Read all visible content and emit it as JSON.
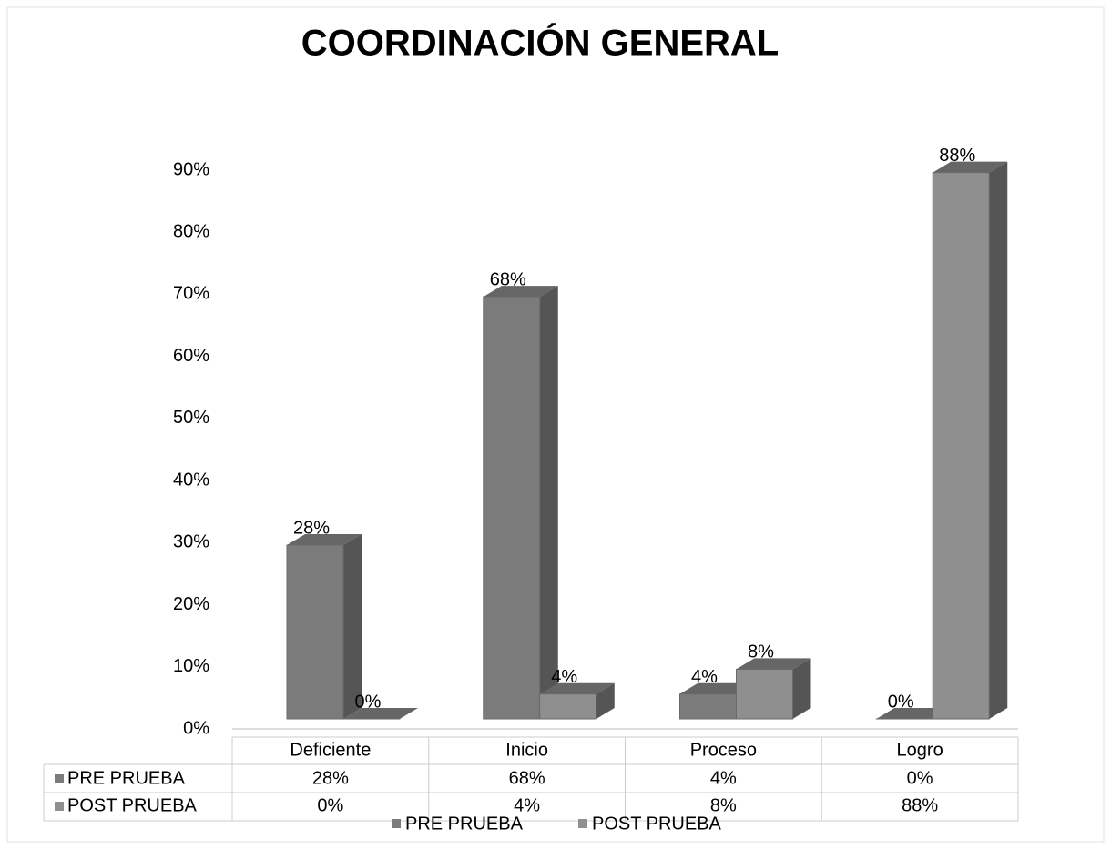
{
  "chart_data": {
    "type": "bar3d",
    "title": "COORDINACIÓN GENERAL",
    "categories": [
      "Deficiente",
      "Inicio",
      "Proceso",
      "Logro"
    ],
    "series": [
      {
        "name": "PRE PRUEBA",
        "color": "#7b7b7b",
        "values": [
          28,
          68,
          4,
          0
        ],
        "value_labels": [
          "28%",
          "68%",
          "4%",
          "0%"
        ]
      },
      {
        "name": "POST PRUEBA",
        "color": "#8f8f8f",
        "values": [
          0,
          4,
          8,
          88
        ],
        "value_labels": [
          "0%",
          "4%",
          "8%",
          "88%"
        ]
      }
    ],
    "ylim": [
      0,
      90
    ],
    "yticks": [
      {
        "value": 0,
        "label": "0%"
      },
      {
        "value": 10,
        "label": "10%"
      },
      {
        "value": 20,
        "label": "20%"
      },
      {
        "value": 30,
        "label": "30%"
      },
      {
        "value": 40,
        "label": "40%"
      },
      {
        "value": 50,
        "label": "50%"
      },
      {
        "value": 60,
        "label": "60%"
      },
      {
        "value": 70,
        "label": "70%"
      },
      {
        "value": 80,
        "label": "80%"
      },
      {
        "value": 90,
        "label": "90%"
      }
    ],
    "data_table": true,
    "legend": "bottom"
  }
}
